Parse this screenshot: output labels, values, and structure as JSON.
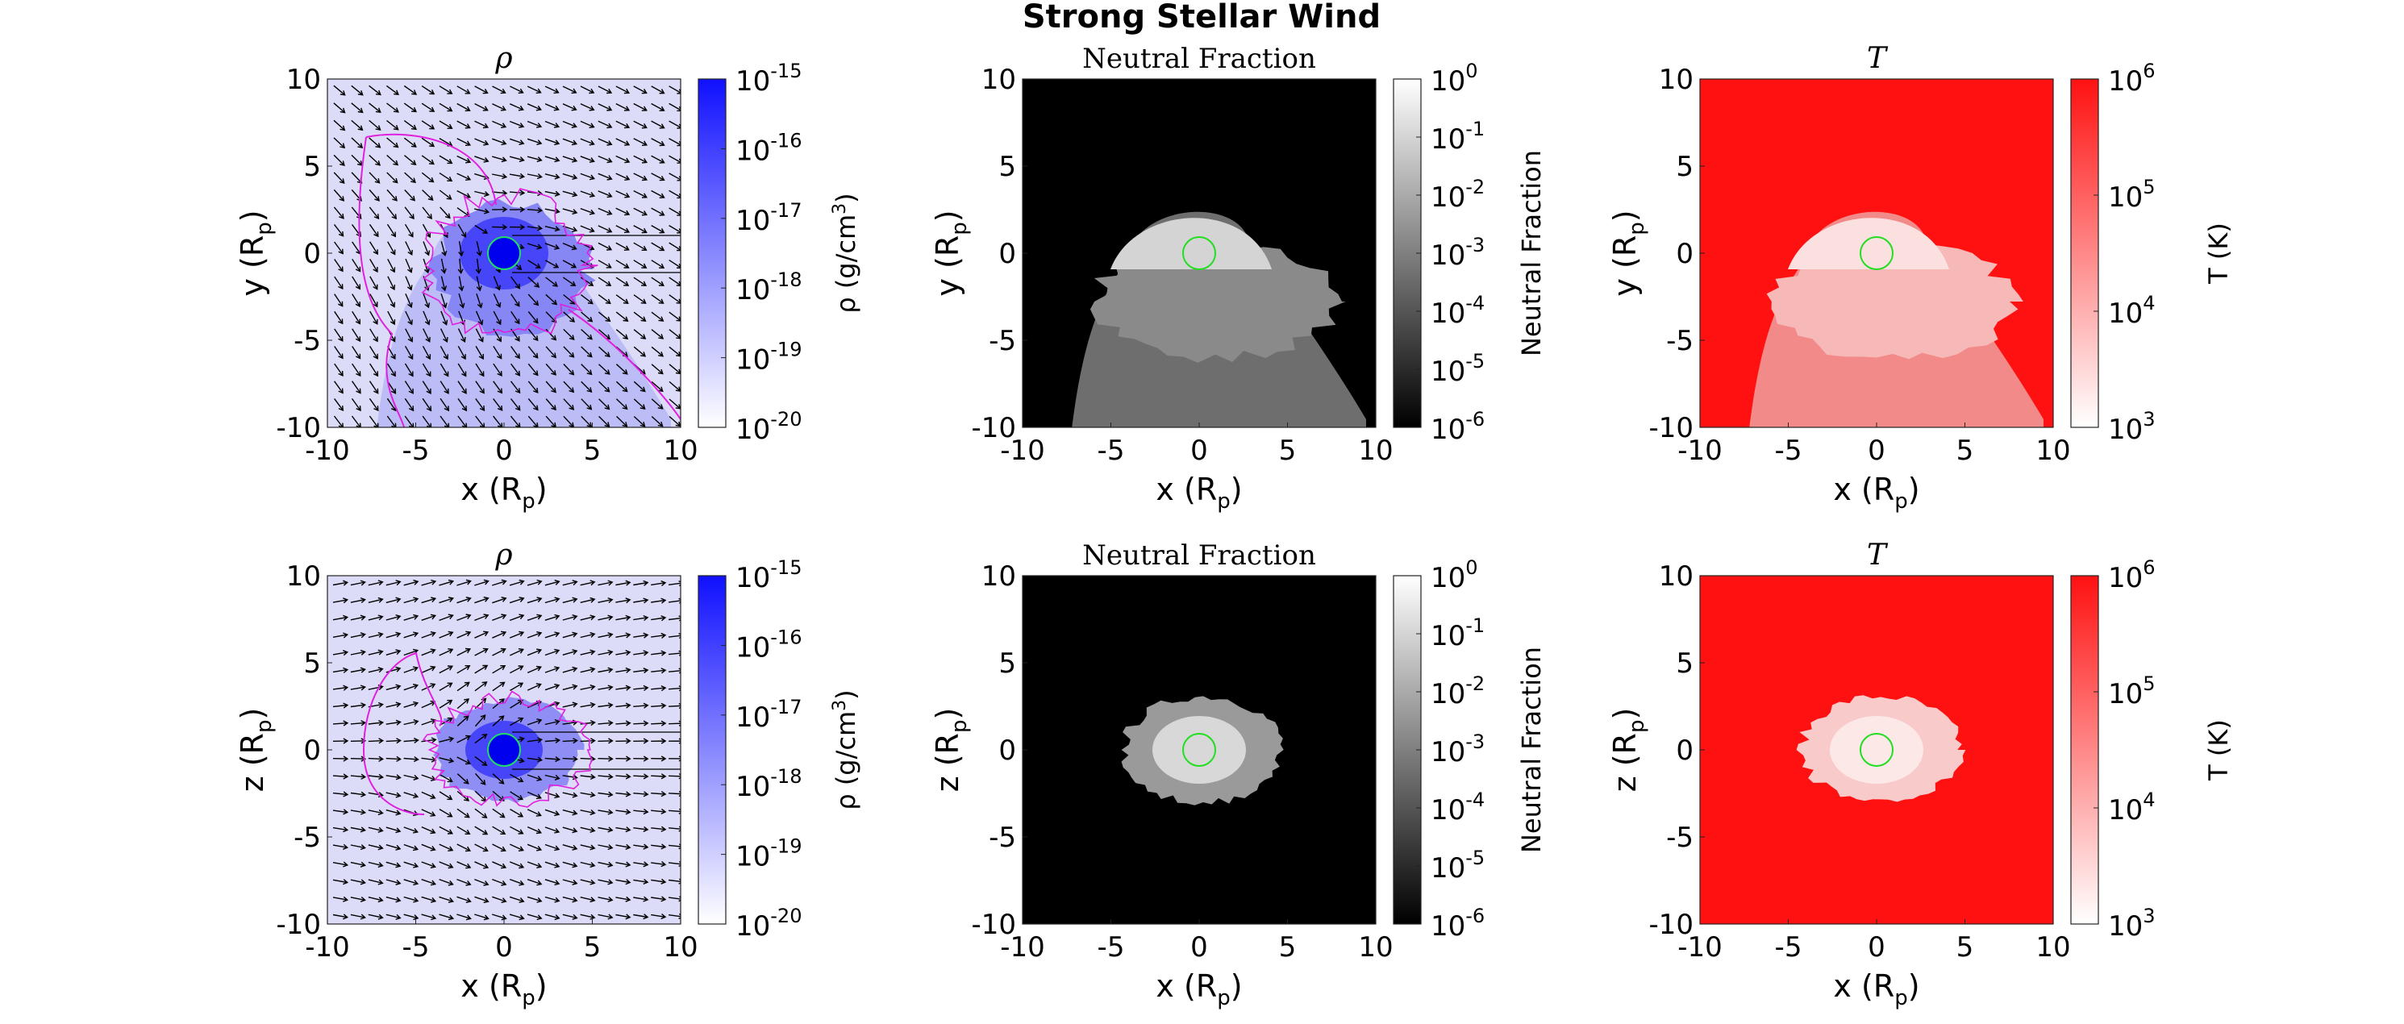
{
  "figure": {
    "title": "Strong Stellar Wind"
  },
  "chart_data": [
    {
      "type": "heatmap",
      "row": 1,
      "title": "ρ",
      "xlabel": "x (R",
      "xlabel_sub": "p",
      "xlabel_end": ")",
      "ylabel": "y (R",
      "ylabel_sub": "p",
      "ylabel_end": ")",
      "xlim": [
        -10,
        10
      ],
      "ylim": [
        -10,
        10
      ],
      "xticks": [
        "-10",
        "-5",
        "0",
        "5",
        "10"
      ],
      "yticks": [
        "-10",
        "-5",
        "0",
        "5",
        "10"
      ],
      "colormap": {
        "low": "#ffffff",
        "high": "#1010ff"
      },
      "background": "#dcdcf8",
      "colorbar": {
        "label": "ρ (g/cm",
        "label_sup": "3",
        "label_end": ")",
        "scale": "log",
        "range_exponents": [
          -20,
          -15
        ],
        "ticks": [
          {
            "base": "10",
            "exp": "-15"
          },
          {
            "base": "10",
            "exp": "-16"
          },
          {
            "base": "10",
            "exp": "-17"
          },
          {
            "base": "10",
            "exp": "-18"
          },
          {
            "base": "10",
            "exp": "-19"
          },
          {
            "base": "10",
            "exp": "-20"
          }
        ]
      },
      "overlays": [
        "velocity-arrows",
        "magenta-contour",
        "planet-circle"
      ]
    },
    {
      "type": "heatmap",
      "row": 1,
      "title": "Neutral Fraction",
      "xlabel": "x (R",
      "xlabel_sub": "p",
      "xlabel_end": ")",
      "ylabel": "y (R",
      "ylabel_sub": "p",
      "ylabel_end": ")",
      "xlim": [
        -10,
        10
      ],
      "ylim": [
        -10,
        10
      ],
      "xticks": [
        "-10",
        "-5",
        "0",
        "5",
        "10"
      ],
      "yticks": [
        "-10",
        "-5",
        "0",
        "5",
        "10"
      ],
      "colormap": {
        "low": "#000000",
        "high": "#ffffff"
      },
      "background": "#000000",
      "colorbar": {
        "label": "Neutral Fraction",
        "scale": "log",
        "range_exponents": [
          -6,
          0
        ],
        "ticks": [
          {
            "base": "10",
            "exp": "0"
          },
          {
            "base": "10",
            "exp": "-1"
          },
          {
            "base": "10",
            "exp": "-2"
          },
          {
            "base": "10",
            "exp": "-3"
          },
          {
            "base": "10",
            "exp": "-4"
          },
          {
            "base": "10",
            "exp": "-5"
          },
          {
            "base": "10",
            "exp": "-6"
          }
        ]
      },
      "overlays": [
        "planet-circle"
      ]
    },
    {
      "type": "heatmap",
      "row": 1,
      "title": "T",
      "xlabel": "x (R",
      "xlabel_sub": "p",
      "xlabel_end": ")",
      "ylabel": "y (R",
      "ylabel_sub": "p",
      "ylabel_end": ")",
      "xlim": [
        -10,
        10
      ],
      "ylim": [
        -10,
        10
      ],
      "xticks": [
        "-10",
        "-5",
        "0",
        "5",
        "10"
      ],
      "yticks": [
        "-10",
        "-5",
        "0",
        "5",
        "10"
      ],
      "colormap": {
        "low": "#ffffff",
        "high": "#ff1111"
      },
      "background": "#ff1111",
      "colorbar": {
        "label": "T (K)",
        "scale": "log",
        "range_exponents": [
          3,
          6
        ],
        "ticks": [
          {
            "base": "10",
            "exp": "6"
          },
          {
            "base": "10",
            "exp": "5"
          },
          {
            "base": "10",
            "exp": "4"
          },
          {
            "base": "10",
            "exp": "3"
          }
        ]
      },
      "overlays": [
        "planet-circle"
      ]
    },
    {
      "type": "heatmap",
      "row": 2,
      "title": "ρ",
      "xlabel": "x (R",
      "xlabel_sub": "p",
      "xlabel_end": ")",
      "ylabel": "z (R",
      "ylabel_sub": "p",
      "ylabel_end": ")",
      "xlim": [
        -10,
        10
      ],
      "ylim": [
        -10,
        10
      ],
      "xticks": [
        "-10",
        "-5",
        "0",
        "5",
        "10"
      ],
      "yticks": [
        "-10",
        "-5",
        "0",
        "5",
        "10"
      ],
      "colormap": {
        "low": "#ffffff",
        "high": "#1010ff"
      },
      "background": "#dcdcf8",
      "colorbar": {
        "label": "ρ (g/cm",
        "label_sup": "3",
        "label_end": ")",
        "scale": "log",
        "range_exponents": [
          -20,
          -15
        ],
        "ticks": [
          {
            "base": "10",
            "exp": "-15"
          },
          {
            "base": "10",
            "exp": "-16"
          },
          {
            "base": "10",
            "exp": "-17"
          },
          {
            "base": "10",
            "exp": "-18"
          },
          {
            "base": "10",
            "exp": "-19"
          },
          {
            "base": "10",
            "exp": "-20"
          }
        ]
      },
      "overlays": [
        "velocity-arrows",
        "magenta-contour",
        "planet-circle"
      ]
    },
    {
      "type": "heatmap",
      "row": 2,
      "title": "Neutral Fraction",
      "xlabel": "x (R",
      "xlabel_sub": "p",
      "xlabel_end": ")",
      "ylabel": "z (R",
      "ylabel_sub": "p",
      "ylabel_end": ")",
      "xlim": [
        -10,
        10
      ],
      "ylim": [
        -10,
        10
      ],
      "xticks": [
        "-10",
        "-5",
        "0",
        "5",
        "10"
      ],
      "yticks": [
        "-10",
        "-5",
        "0",
        "5",
        "10"
      ],
      "colormap": {
        "low": "#000000",
        "high": "#ffffff"
      },
      "background": "#000000",
      "colorbar": {
        "label": "Neutral Fraction",
        "scale": "log",
        "range_exponents": [
          -6,
          0
        ],
        "ticks": [
          {
            "base": "10",
            "exp": "0"
          },
          {
            "base": "10",
            "exp": "-1"
          },
          {
            "base": "10",
            "exp": "-2"
          },
          {
            "base": "10",
            "exp": "-3"
          },
          {
            "base": "10",
            "exp": "-4"
          },
          {
            "base": "10",
            "exp": "-5"
          },
          {
            "base": "10",
            "exp": "-6"
          }
        ]
      },
      "overlays": [
        "planet-circle"
      ]
    },
    {
      "type": "heatmap",
      "row": 2,
      "title": "T",
      "xlabel": "x (R",
      "xlabel_sub": "p",
      "xlabel_end": ")",
      "ylabel": "z (R",
      "ylabel_sub": "p",
      "ylabel_end": ")",
      "xlim": [
        -10,
        10
      ],
      "ylim": [
        -10,
        10
      ],
      "xticks": [
        "-10",
        "-5",
        "0",
        "5",
        "10"
      ],
      "yticks": [
        "-10",
        "-5",
        "0",
        "5",
        "10"
      ],
      "colormap": {
        "low": "#ffffff",
        "high": "#ff1111"
      },
      "background": "#ff1111",
      "colorbar": {
        "label": "T (K)",
        "scale": "log",
        "range_exponents": [
          3,
          6
        ],
        "ticks": [
          {
            "base": "10",
            "exp": "6"
          },
          {
            "base": "10",
            "exp": "5"
          },
          {
            "base": "10",
            "exp": "4"
          },
          {
            "base": "10",
            "exp": "3"
          }
        ]
      },
      "overlays": [
        "planet-circle"
      ]
    }
  ]
}
